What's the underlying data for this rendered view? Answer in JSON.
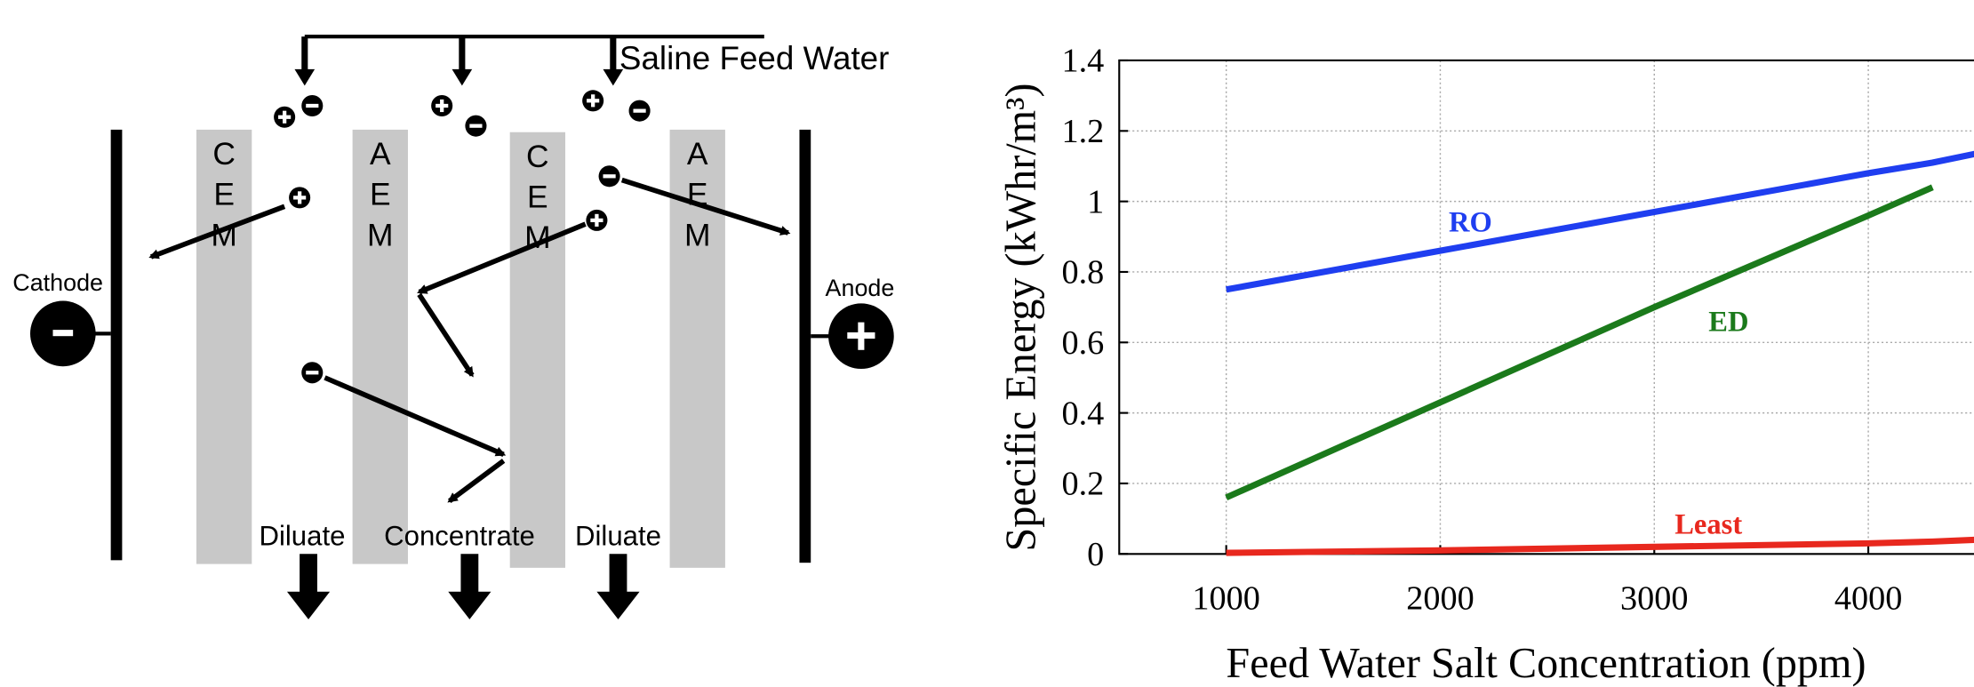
{
  "diagram": {
    "feed_label": "Saline Feed Water",
    "cathode": "Cathode",
    "anode": "Anode",
    "membranes": [
      "CEM",
      "AEM",
      "CEM",
      "AEM"
    ],
    "outlets": [
      "Diluate",
      "Concentrate",
      "Diluate"
    ]
  },
  "chart_data": {
    "type": "line",
    "x_label": "Feed Water Salt Concentration (ppm)",
    "y_label": "Specific Energy (kWhr/m³)",
    "x": [
      1000,
      2000,
      3000,
      4000,
      4300,
      4500
    ],
    "series": [
      {
        "name": "RO",
        "color": "#1f3ef0",
        "values": [
          0.75,
          0.86,
          0.97,
          1.08,
          1.11,
          1.135
        ]
      },
      {
        "name": "ED",
        "color": "#1b7a1b",
        "values": [
          0.16,
          0.43,
          0.7,
          0.96,
          1.04,
          null
        ]
      },
      {
        "name": "Least",
        "color": "#e8281e",
        "values": [
          0.003,
          0.01,
          0.02,
          0.03,
          0.035,
          0.04
        ]
      }
    ],
    "xlim": [
      500,
      4500
    ],
    "ylim": [
      0,
      1.4
    ],
    "xticks": [
      1000,
      2000,
      3000,
      4000
    ],
    "yticks": [
      0,
      0.2,
      0.4,
      0.6,
      0.8,
      1,
      1.2,
      1.4
    ],
    "grid": true
  }
}
